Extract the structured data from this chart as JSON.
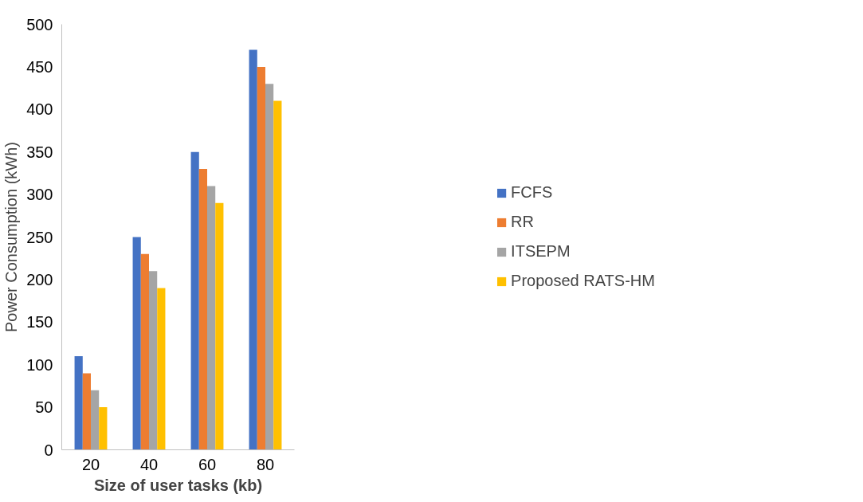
{
  "chart_data": {
    "type": "bar",
    "xlabel": "Size of user tasks (kb)",
    "ylabel": "Power Consumption (kWh)",
    "categories": [
      "20",
      "40",
      "60",
      "80"
    ],
    "series": [
      {
        "name": "FCFS",
        "color": "#4472c4",
        "values": [
          110,
          250,
          350,
          470
        ]
      },
      {
        "name": "RR",
        "color": "#ed7d31",
        "values": [
          90,
          230,
          330,
          450
        ]
      },
      {
        "name": "ITSEPM",
        "color": "#a5a5a5",
        "values": [
          70,
          210,
          310,
          430
        ]
      },
      {
        "name": "Proposed RATS-HM",
        "color": "#ffc000",
        "values": [
          50,
          190,
          290,
          410
        ]
      }
    ],
    "ylim": [
      0,
      500
    ],
    "yticks": [
      0,
      50,
      100,
      150,
      200,
      250,
      300,
      350,
      400,
      450,
      500
    ],
    "grid": false,
    "legend": "right"
  }
}
